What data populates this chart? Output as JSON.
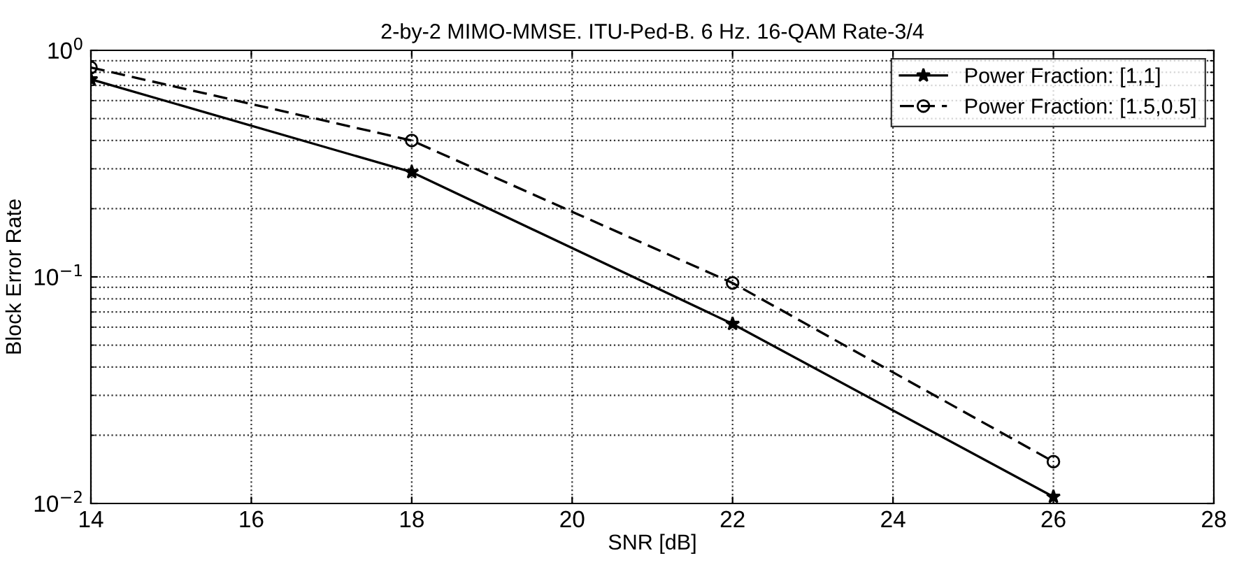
{
  "chart_data": {
    "type": "line",
    "title": "2-by-2 MIMO-MMSE. ITU-Ped-B. 6 Hz. 16-QAM Rate-3/4",
    "xlabel": "SNR [dB]",
    "ylabel": "Block Error Rate",
    "x": [
      14,
      18,
      22,
      26
    ],
    "series": [
      {
        "name": "Power Fraction: [1,1]",
        "color": "#000000",
        "values": [
          0.745,
          0.29,
          0.062,
          0.0107
        ],
        "marker": "star",
        "line_style": "solid"
      },
      {
        "name": "Power Fraction: [1.5,0.5]",
        "color": "#000000",
        "values": [
          0.84,
          0.4,
          0.094,
          0.0153
        ],
        "marker": "circle",
        "line_style": "dashed"
      }
    ],
    "log": "y",
    "xlim": [
      14,
      28
    ],
    "ylim": [
      0.01,
      1
    ],
    "xticks": [
      14,
      16,
      18,
      20,
      22,
      24,
      26,
      28
    ],
    "yticks": [
      {
        "value": 1,
        "label": "10$^{0}$"
      },
      {
        "value": 0.1,
        "label": "10$^{−1}$"
      },
      {
        "value": 0.01,
        "label": "10$^{−2}$"
      }
    ],
    "grid": true,
    "legend": "top right"
  }
}
